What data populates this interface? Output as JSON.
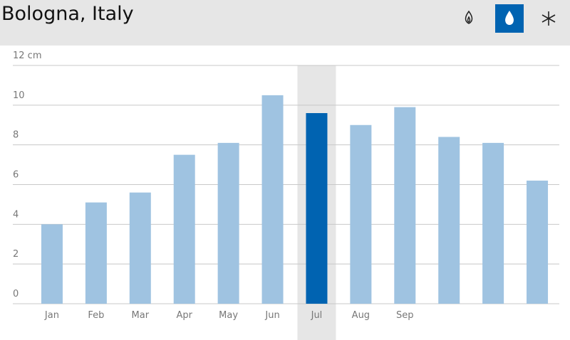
{
  "chart_data": {
    "type": "bar",
    "title": "Bologna, Italy",
    "categories": [
      "Jan",
      "Feb",
      "Mar",
      "Apr",
      "May",
      "Jun",
      "Jul",
      "Aug",
      "Sep",
      null,
      null,
      null
    ],
    "values": [
      4.0,
      5.1,
      5.6,
      7.5,
      8.1,
      10.5,
      9.6,
      9.0,
      9.9,
      8.4,
      8.1,
      6.2
    ],
    "colors": [
      "#9fc3e1",
      "#9fc3e1",
      "#9fc3e1",
      "#9fc3e1",
      "#9fc3e1",
      "#9fc3e1",
      "#0063b1",
      "#9fc3e1",
      "#9fc3e1",
      "#9fc3e1",
      "#9fc3e1",
      "#9fc3e1"
    ],
    "ylim": [
      0,
      12
    ],
    "yticks": [
      0,
      2,
      4,
      6,
      8,
      10,
      {
        "value": 12,
        "label": "12 cm"
      }
    ],
    "grid": true
  }
}
